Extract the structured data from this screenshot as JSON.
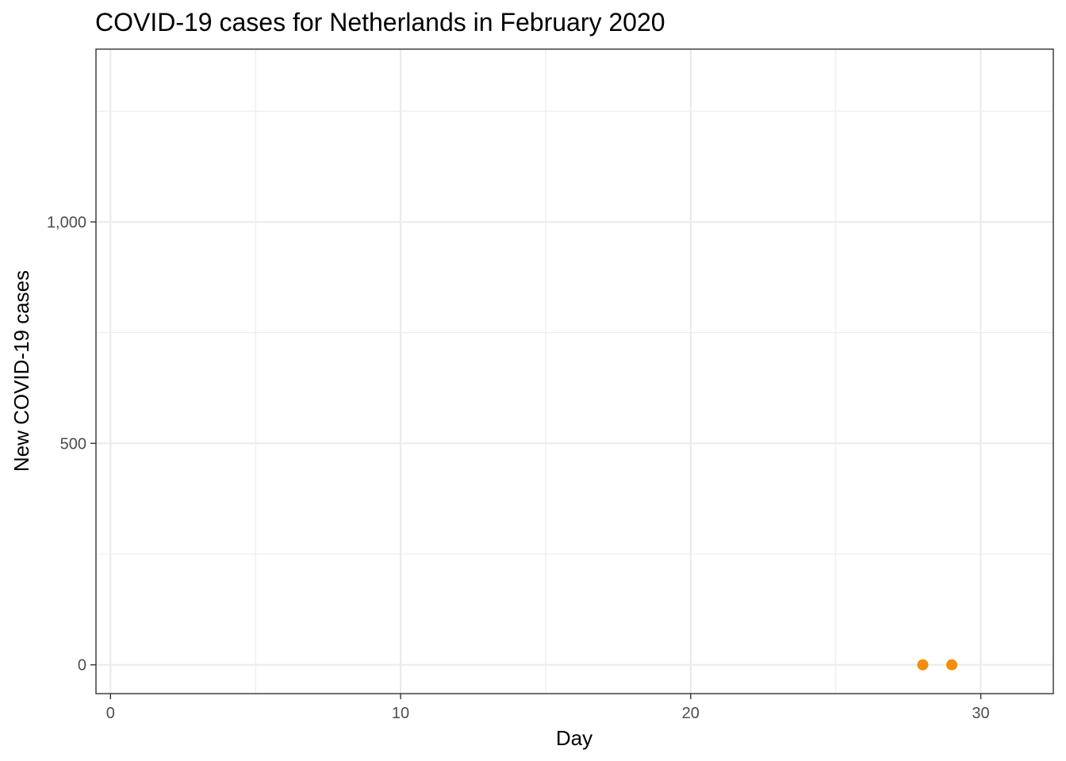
{
  "chart_data": {
    "type": "scatter",
    "title": "COVID-19 cases for Netherlands in February 2020",
    "xlabel": "Day",
    "ylabel": "New COVID-19 cases",
    "xlim": [
      -0.5,
      32.5
    ],
    "ylim": [
      -65,
      1390
    ],
    "x_ticks": [
      0,
      10,
      20,
      30
    ],
    "x_tick_labels": [
      "0",
      "10",
      "20",
      "30"
    ],
    "x_minor_ticks": [
      5,
      15,
      25
    ],
    "y_ticks": [
      0,
      500,
      1000
    ],
    "y_tick_labels": [
      "0",
      "500",
      "1,000"
    ],
    "y_minor_ticks": [
      250,
      750,
      1250
    ],
    "grid": true,
    "legend": "none",
    "point_color": "#F28E0B",
    "series": [
      {
        "x": [
          28,
          29
        ],
        "y": [
          0,
          0
        ]
      }
    ]
  }
}
